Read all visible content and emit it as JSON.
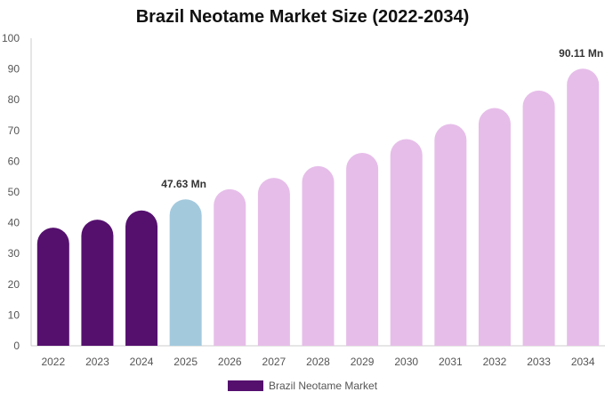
{
  "chart_data": {
    "type": "bar",
    "title": "Brazil Neotame Market Size (2022-2034)",
    "xlabel": "",
    "ylabel": "",
    "ylim": [
      0,
      100
    ],
    "yticks": [
      0,
      10,
      20,
      30,
      40,
      50,
      60,
      70,
      80,
      90,
      100
    ],
    "grid": false,
    "legend_position": "bottom-center",
    "categories": [
      "2022",
      "2023",
      "2024",
      "2025",
      "2026",
      "2027",
      "2028",
      "2029",
      "2030",
      "2031",
      "2032",
      "2033",
      "2034"
    ],
    "series": [
      {
        "name": "Brazil Neotame Market",
        "values": [
          38.4,
          41.0,
          44.0,
          47.63,
          50.9,
          54.6,
          58.4,
          62.7,
          67.2,
          72.1,
          77.3,
          83.0,
          90.11
        ]
      }
    ],
    "bar_colors": [
      "#55106e",
      "#55106e",
      "#55106e",
      "#a3c9dd",
      "#e6bde9",
      "#e6bde9",
      "#e6bde9",
      "#e6bde9",
      "#e6bde9",
      "#e6bde9",
      "#e6bde9",
      "#e6bde9",
      "#e6bde9"
    ],
    "legend_color": "#55106e",
    "annotations": [
      {
        "category": "2025",
        "text": "47.63 Mn"
      },
      {
        "category": "2034",
        "text": "90.11 Mn"
      }
    ]
  }
}
